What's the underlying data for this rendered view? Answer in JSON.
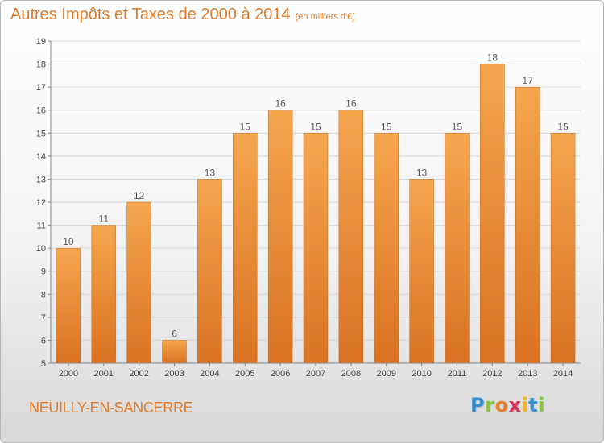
{
  "header": {
    "title": "Autres Impôts et Taxes de 2000 à 2014",
    "subtitle": "(en milliers d'€)"
  },
  "footer": {
    "commune": "NEUILLY-EN-SANCERRE"
  },
  "logo": {
    "text": "Proxiti",
    "letter_colors": [
      "#3a8fd0",
      "#8cc63f",
      "#e8812f",
      "#d9305e",
      "#f2b71f",
      "#3a8fd0",
      "#8cc63f"
    ]
  },
  "colors": {
    "bar_light": "#f5a64e",
    "bar_dark": "#d97222",
    "title": "#e07a28",
    "grid": "#d6d6d6",
    "axis": "#888888"
  },
  "chart_data": {
    "type": "bar",
    "title": "Autres Impôts et Taxes de 2000 à 2014",
    "subtitle": "(en milliers d'€)",
    "categories": [
      "2000",
      "2001",
      "2002",
      "2003",
      "2004",
      "2005",
      "2006",
      "2007",
      "2008",
      "2009",
      "2010",
      "2011",
      "2012",
      "2013",
      "2014"
    ],
    "values": [
      10,
      11,
      12,
      6,
      13,
      15,
      16,
      15,
      16,
      15,
      13,
      15,
      18,
      17,
      15
    ],
    "ylim": [
      5,
      19
    ],
    "yticks": [
      5,
      6,
      7,
      8,
      9,
      10,
      11,
      12,
      13,
      14,
      15,
      16,
      17,
      18,
      19
    ],
    "grid": true,
    "data_labels": true
  }
}
